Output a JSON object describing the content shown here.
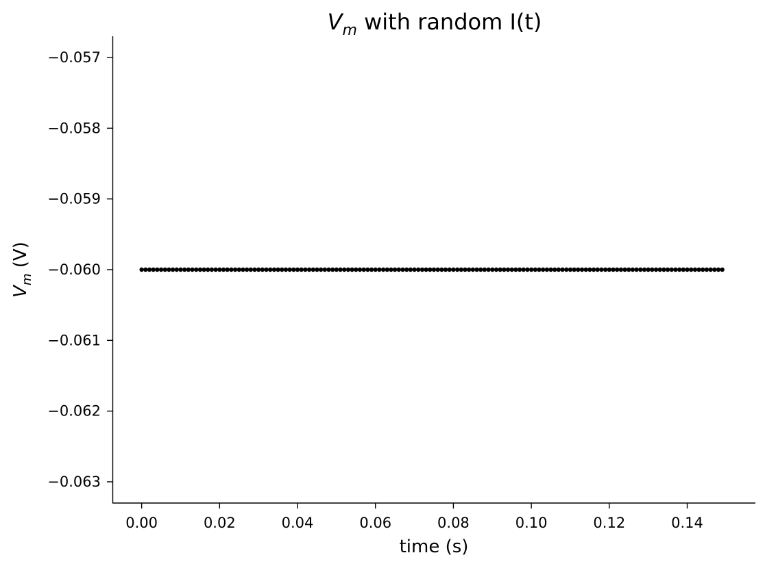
{
  "chart_data": {
    "type": "scatter",
    "title": {
      "var": "V",
      "sub": "m",
      "rest": " with random I(t)"
    },
    "xlabel": "time (s)",
    "ylabel": {
      "var": "V",
      "sub": "m",
      "rest": " (V)"
    },
    "xlim": [
      -0.0075,
      0.1575
    ],
    "ylim": [
      -0.0633,
      -0.0567
    ],
    "xticks": [
      0.0,
      0.02,
      0.04,
      0.06,
      0.08,
      0.1,
      0.12,
      0.14
    ],
    "xtick_labels": [
      "0.00",
      "0.02",
      "0.04",
      "0.06",
      "0.08",
      "0.10",
      "0.12",
      "0.14"
    ],
    "yticks": [
      -0.057,
      -0.058,
      -0.059,
      -0.06,
      -0.061,
      -0.062,
      -0.063
    ],
    "ytick_labels": [
      "−0.057",
      "−0.058",
      "−0.059",
      "−0.060",
      "−0.061",
      "−0.062",
      "−0.063"
    ],
    "grid": false,
    "series": [
      {
        "marker_color": "#000000",
        "x_start": 0.0,
        "x_step": 0.001,
        "count": 150,
        "y": -0.06
      }
    ]
  }
}
